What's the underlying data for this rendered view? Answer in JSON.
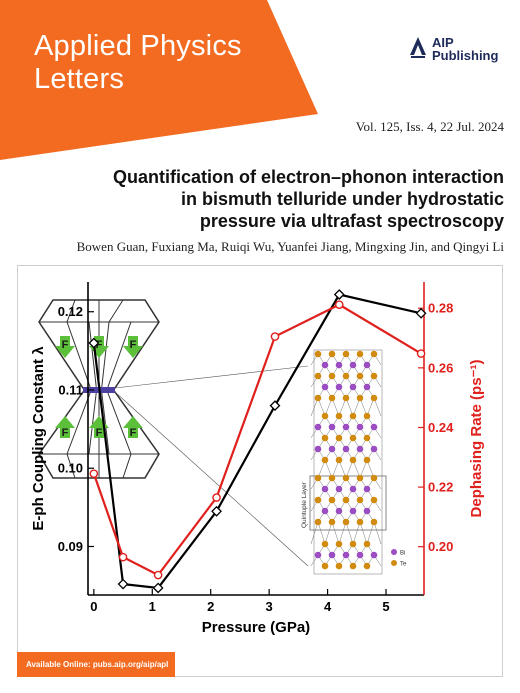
{
  "cover": {
    "journal_line1": "Applied Physics",
    "journal_line2": "Letters",
    "publisher_line1": "AIP",
    "publisher_line2": "Publishing",
    "volume": "Vol. 125, Iss. 4, 22 Jul. 2024",
    "title_line1": "Quantification of electron–phonon interaction",
    "title_line2": "in bismuth telluride under hydrostatic",
    "title_line3": "pressure via ultrafast spectroscopy",
    "authors": "Bowen Guan, Fuxiang Ma, Ruiqi Wu, Yuanfei Jiang, Mingxing Jin, and Qingyi Li",
    "footer": "Available Online: pubs.aip.org/aip/apl",
    "colors": {
      "orange": "#f26b21",
      "navy": "#1e2a5a"
    }
  },
  "chart_data": {
    "type": "line",
    "xlabel": "Pressure (GPa)",
    "ylabel_left": "E-ph Coupling Constant  λ",
    "ylabel_right": "Dephasing Rate (ps⁻¹)",
    "xlim": [
      -0.1,
      5.65
    ],
    "ylim_left": [
      0.0838,
      0.1238
    ],
    "ylim_right": [
      0.1838,
      0.2888
    ],
    "x_ticks": [
      "0",
      "1",
      "2",
      "3",
      "4",
      "5"
    ],
    "y_ticks_left": [
      "0.09",
      "0.10",
      "0.11",
      "0.12"
    ],
    "y_ticks_right": [
      "0.20",
      "0.22",
      "0.24",
      "0.26",
      "0.28"
    ],
    "grid": false,
    "series": [
      {
        "axis": "left",
        "color": "#000000",
        "marker": "diamond",
        "x": [
          0,
          0.5,
          1.1,
          2.1,
          3.1,
          4.2,
          5.6
        ],
        "y": [
          0.116,
          0.0852,
          0.0847,
          0.0945,
          0.108,
          0.1222,
          0.1198
        ]
      },
      {
        "axis": "right",
        "color": "#e0201c",
        "marker": "circle",
        "x": [
          0,
          0.5,
          1.1,
          2.1,
          3.1,
          4.2,
          5.6
        ],
        "y": [
          0.2245,
          0.1965,
          0.1905,
          0.2165,
          0.2705,
          0.2812,
          0.2648
        ]
      }
    ],
    "inset_labels": {
      "hex_letter": "F",
      "quintuple_layer": "Quintuple Layer",
      "legend_bi": "Bi",
      "legend_te": "Te"
    }
  }
}
